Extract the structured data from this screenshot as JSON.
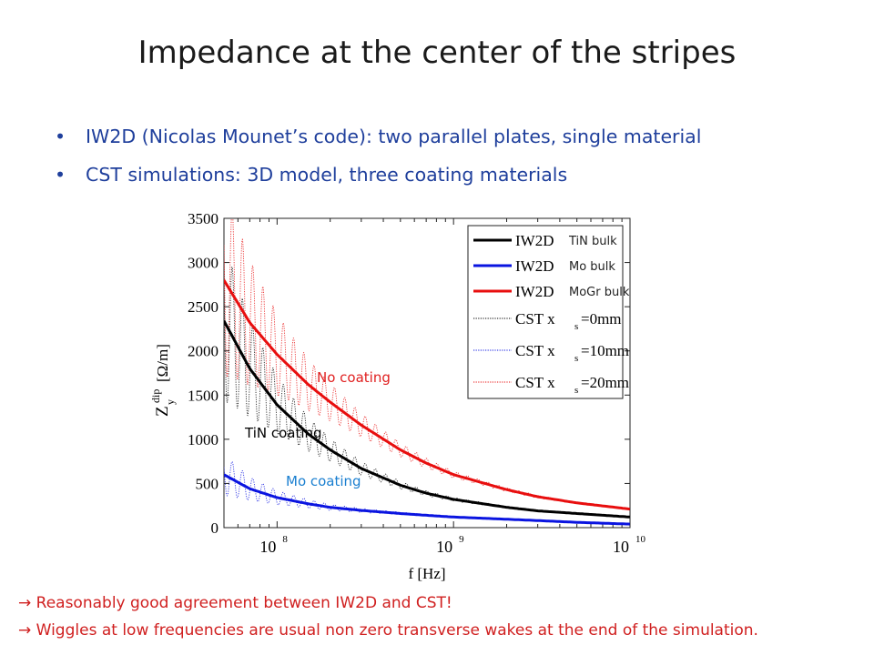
{
  "slide": {
    "title": "Impedance at the center of the stripes",
    "bullet_symbol": "•",
    "bullets": [
      "IW2D (Nicolas Mounet’s code): two parallel plates, single material",
      "CST simulations: 3D model, three coating materials"
    ],
    "conclusions": [
      "→ Reasonably good agreement between IW2D and CST!",
      "→ Wiggles at low frequencies are usual non zero transverse wakes at the end of the simulation."
    ]
  },
  "chart_data": {
    "type": "line",
    "x_scale": "log",
    "xlim_hz": [
      50000000,
      10000000000
    ],
    "ylim": [
      0,
      3500
    ],
    "xlabel": "f [Hz]",
    "ylabel_main": "Z",
    "ylabel_sup": "dip",
    "ylabel_sub": "y",
    "ylabel_unit": "[Ω/m]",
    "y_ticks": [
      "0",
      "500",
      "1000",
      "1500",
      "2000",
      "2500",
      "3000",
      "3500"
    ],
    "x_ticks": [
      {
        "base": "10",
        "exp": "8"
      },
      {
        "base": "10",
        "exp": "9"
      },
      {
        "base": "10",
        "exp": "10"
      }
    ],
    "colors": {
      "black": "#000000",
      "blue": "#0a14e0",
      "red": "#e80e0e"
    },
    "series": [
      {
        "key": "tin",
        "x": [
          50000000,
          70000000,
          100000000,
          150000000,
          200000000,
          300000000,
          500000000,
          700000000,
          1000000000,
          2000000000,
          3000000000,
          5000000000,
          10000000000
        ],
        "y": [
          2340,
          1800,
          1390,
          1060,
          880,
          670,
          480,
          390,
          320,
          230,
          190,
          160,
          120
        ]
      },
      {
        "key": "mo",
        "x": [
          50000000,
          70000000,
          100000000,
          150000000,
          200000000,
          300000000,
          500000000,
          700000000,
          1000000000,
          2000000000,
          3000000000,
          5000000000,
          10000000000
        ],
        "y": [
          600,
          440,
          340,
          270,
          230,
          195,
          160,
          140,
          120,
          95,
          80,
          60,
          40
        ]
      },
      {
        "key": "mogr",
        "x": [
          50000000,
          70000000,
          100000000,
          150000000,
          200000000,
          300000000,
          500000000,
          700000000,
          1000000000,
          2000000000,
          3000000000,
          5000000000,
          10000000000
        ],
        "y": [
          2800,
          2320,
          1960,
          1620,
          1420,
          1160,
          880,
          730,
          600,
          430,
          350,
          280,
          210
        ]
      }
    ],
    "cst_wiggle_period_decades": 0.058,
    "legend": {
      "placement": "top-right",
      "entries": [
        {
          "key": "tin",
          "text": "IW2D",
          "note": "TiN bulk",
          "color": "#000000",
          "style": "solid"
        },
        {
          "key": "mo",
          "text": "IW2D",
          "note": "Mo bulk",
          "color": "#0a14e0",
          "style": "solid"
        },
        {
          "key": "mogr",
          "text": "IW2D",
          "note": "MoGr bulk",
          "color": "#e80e0e",
          "style": "solid"
        },
        {
          "key": "tin",
          "text": "CST x",
          "sub": "s",
          "rest": "=0mm",
          "color": "#000000",
          "style": "dotted"
        },
        {
          "key": "mo",
          "text": "CST x",
          "sub": "s",
          "rest": "=10mm",
          "color": "#0a14e0",
          "style": "dotted"
        },
        {
          "key": "mogr",
          "text": "CST x",
          "sub": "s",
          "rest": "=20mm",
          "color": "#e80e0e",
          "style": "dotted"
        }
      ]
    },
    "annotations": [
      {
        "key": "mogr",
        "text": "No coating",
        "color": "#e02020"
      },
      {
        "key": "tin",
        "text": "TiN coating",
        "color": "#000000"
      },
      {
        "key": "mo",
        "text": "Mo coating",
        "color": "#1a7fd0"
      }
    ]
  }
}
